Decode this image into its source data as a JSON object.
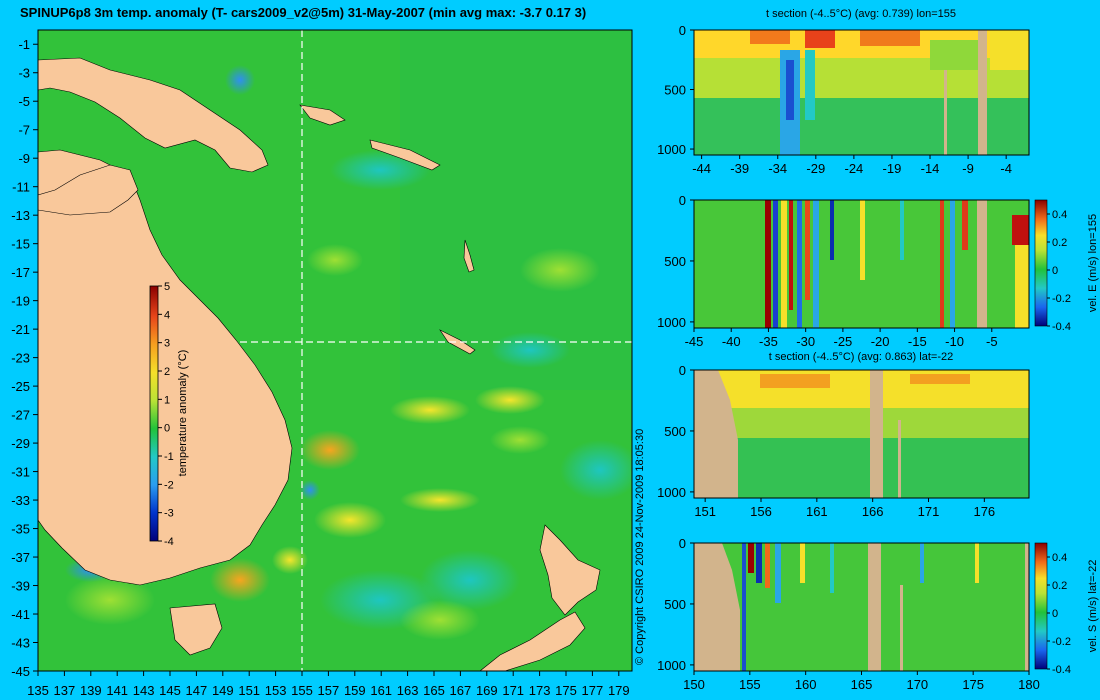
{
  "title": "SPINUP6p8 3m temp. anomaly (T- cars2009_v2@5m) 31-May-2007 (min avg max: -3.7 0.17 3)",
  "copyright": "© Copyright CSIRO 2009   24-Nov-2009 18:05:30",
  "colors": {
    "background": "#00ccff",
    "land": "#f9c89b",
    "section_land": "#d2b48c"
  },
  "map": {
    "xticks": [
      "135",
      "137",
      "139",
      "141",
      "143",
      "145",
      "147",
      "149",
      "151",
      "153",
      "155",
      "157",
      "159",
      "161",
      "163",
      "165",
      "167",
      "169",
      "171",
      "173",
      "175",
      "177",
      "179"
    ],
    "yticks": [
      "-1",
      "-3",
      "-5",
      "-7",
      "-9",
      "-11",
      "-13",
      "-15",
      "-17",
      "-19",
      "-21",
      "-23",
      "-25",
      "-27",
      "-29",
      "-31",
      "-33",
      "-35",
      "-37",
      "-39",
      "-41",
      "-43",
      "-45"
    ],
    "colorbar": {
      "label": "temperature anomaly (°C)",
      "ticks": [
        "5",
        "4",
        "3",
        "2",
        "1",
        "0",
        "-1",
        "-2",
        "-3",
        "-4"
      ]
    },
    "section_lon": 155,
    "section_lat": -22
  },
  "panels": [
    {
      "key": "p1",
      "title": "t section (-4..5°C) (avg: 0.739) lon=155",
      "xticks": [
        "-44",
        "-39",
        "-34",
        "-29",
        "-24",
        "-19",
        "-14",
        "-9",
        "-4"
      ],
      "yticks": [
        "0",
        "500",
        "1000"
      ]
    },
    {
      "key": "p2",
      "title": "",
      "xticks": [
        "-45",
        "-40",
        "-35",
        "-30",
        "-25",
        "-20",
        "-15",
        "-10",
        "-5"
      ],
      "yticks": [
        "0",
        "500",
        "1000"
      ],
      "colorbar_label": "vel. E (m/s) lon=155",
      "colorbar_ticks": [
        "0.4",
        "0.2",
        "0",
        "-0.2",
        "-0.4"
      ]
    },
    {
      "key": "p3",
      "title": "t section (-4..5°C) (avg: 0.863) lat=-22",
      "xticks": [
        "151",
        "156",
        "161",
        "166",
        "171",
        "176"
      ],
      "yticks": [
        "0",
        "500",
        "1000"
      ]
    },
    {
      "key": "p4",
      "title": "",
      "xticks": [
        "150",
        "155",
        "160",
        "165",
        "170",
        "175",
        "180"
      ],
      "yticks": [
        "0",
        "500",
        "1000"
      ],
      "colorbar_label": "vel. S (m/s) lat=-22",
      "colorbar_ticks": [
        "0.4",
        "0.2",
        "0",
        "-0.2",
        "-0.4"
      ]
    }
  ],
  "chart_data": [
    {
      "type": "heatmap",
      "title": "SPINUP6p8 3m temp. anomaly (T- cars2009_v2@5m) 31-May-2007 (min avg max: -3.7 0.17 3)",
      "xlabel": "",
      "ylabel": "",
      "xlim": [
        135,
        180
      ],
      "ylim": [
        -45,
        0
      ],
      "colorbar": {
        "label": "temperature anomaly (°C)",
        "range": [
          -4,
          5
        ]
      },
      "stats": {
        "min": -3.7,
        "avg": 0.17,
        "max": 3
      }
    },
    {
      "type": "heatmap",
      "title": "t section (-4..5°C) (avg: 0.739) lon=155",
      "xlabel": "",
      "ylabel": "",
      "xlim": [
        -45,
        -1
      ],
      "ylim": [
        1050,
        0
      ],
      "value_range": [
        -4,
        5
      ],
      "avg": 0.739
    },
    {
      "type": "heatmap",
      "title": "",
      "xlabel": "",
      "ylabel": "",
      "xlim": [
        -45,
        0
      ],
      "ylim": [
        1050,
        0
      ],
      "colorbar": {
        "label": "vel. E (m/s) lon=155",
        "range": [
          -0.4,
          0.5
        ]
      }
    },
    {
      "type": "heatmap",
      "title": "t section (-4..5°C) (avg: 0.863) lat=-22",
      "xlabel": "",
      "ylabel": "",
      "xlim": [
        150,
        180
      ],
      "ylim": [
        1050,
        0
      ],
      "value_range": [
        -4,
        5
      ],
      "avg": 0.863
    },
    {
      "type": "heatmap",
      "title": "",
      "xlabel": "",
      "ylabel": "",
      "xlim": [
        150,
        180
      ],
      "ylim": [
        1050,
        0
      ],
      "colorbar": {
        "label": "vel. S (m/s) lat=-22",
        "range": [
          -0.4,
          0.5
        ]
      }
    }
  ]
}
